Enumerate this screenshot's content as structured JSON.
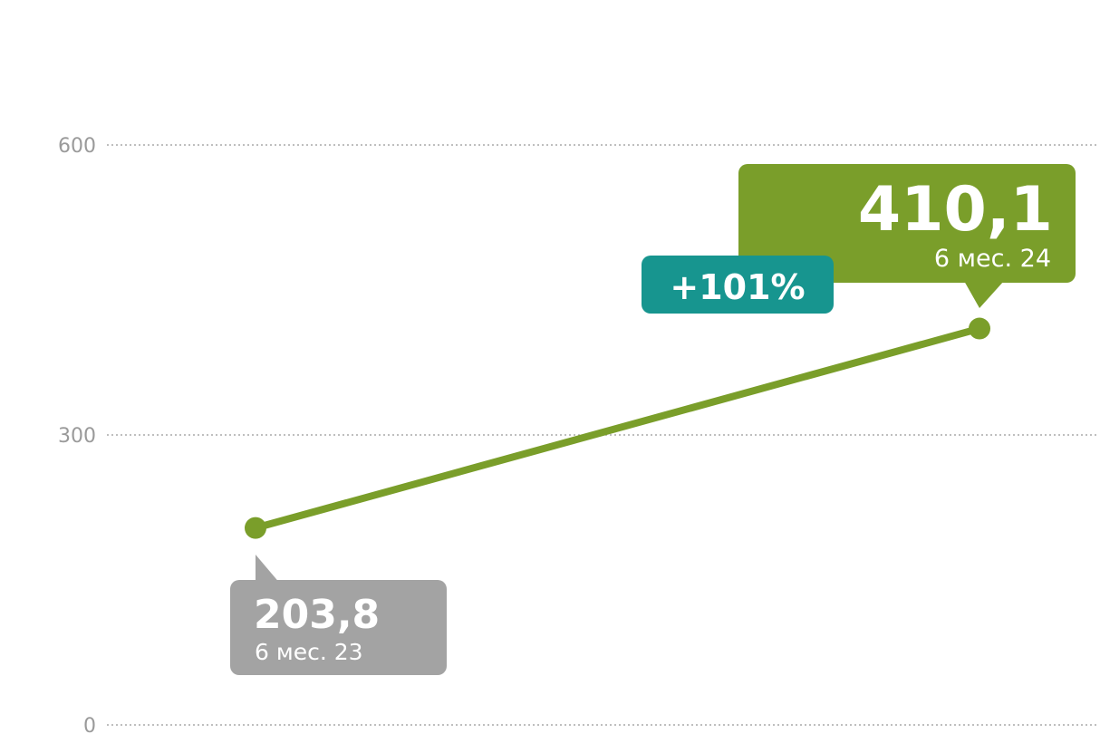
{
  "chart_data": {
    "type": "line",
    "categories": [
      "6 мес. 23",
      "6 мес. 24"
    ],
    "values": [
      203.8,
      410.1
    ],
    "value_labels": [
      "203,8",
      "410,1"
    ],
    "annotation": "+101%",
    "color": "#7a9e2a",
    "ylim": [
      0,
      600
    ],
    "yticks": [
      0,
      300,
      600
    ],
    "grid": true
  }
}
